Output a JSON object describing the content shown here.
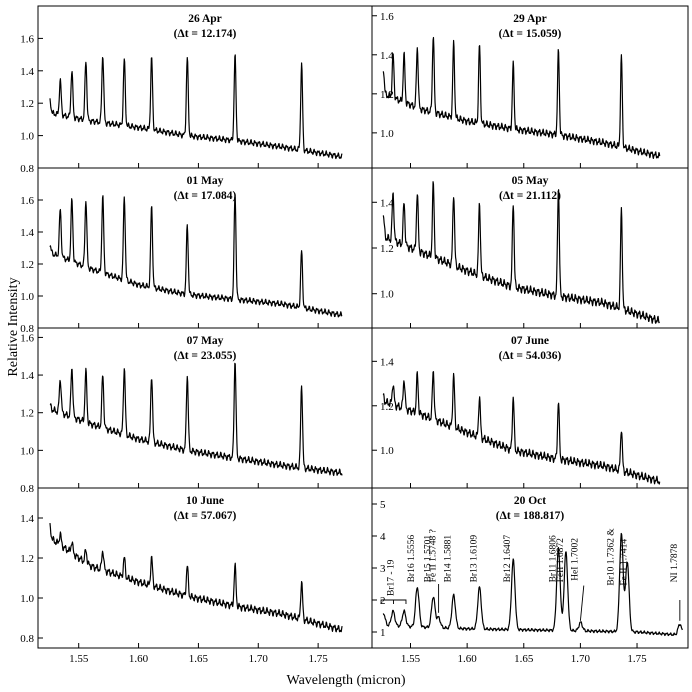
{
  "figure": {
    "ylabel": "Relative Intensity",
    "xlabel": "Wavelength (micron)",
    "xlim": [
      1.516,
      1.795
    ],
    "xticks": [
      "1.55",
      "1.60",
      "1.65",
      "1.70",
      "1.75"
    ],
    "xtick_values": [
      1.55,
      1.6,
      1.65,
      1.7,
      1.75
    ]
  },
  "chart_data": [
    {
      "type": "line",
      "title": "26 Apr",
      "subtitle": "(Δt = 12.174)",
      "ylim": [
        0.8,
        1.8
      ],
      "yticks": [
        0.8,
        1.0,
        1.2,
        1.4,
        1.6
      ],
      "ytick_labels": [
        "0.8",
        "1.0",
        "1.2",
        "1.4",
        "1.6"
      ],
      "x_range": [
        1.526,
        1.77
      ],
      "continuum": [
        [
          1.526,
          1.14
        ],
        [
          1.56,
          1.09
        ],
        [
          1.6,
          1.05
        ],
        [
          1.64,
          1.0
        ],
        [
          1.68,
          0.97
        ],
        [
          1.72,
          0.93
        ],
        [
          1.77,
          0.87
        ]
      ],
      "peaks": [
        [
          1.526,
          1.22
        ],
        [
          1.5346,
          1.34
        ],
        [
          1.5443,
          1.4
        ],
        [
          1.556,
          1.46
        ],
        [
          1.5701,
          1.5
        ],
        [
          1.5881,
          1.47
        ],
        [
          1.6109,
          1.48
        ],
        [
          1.6407,
          1.48
        ],
        [
          1.6806,
          1.49
        ],
        [
          1.7362,
          1.44
        ]
      ]
    },
    {
      "type": "line",
      "title": "29 Apr",
      "subtitle": "(Δt = 15.059)",
      "ylim": [
        0.82,
        1.65
      ],
      "yticks": [
        1.0,
        1.2,
        1.4,
        1.6
      ],
      "ytick_labels": [
        "1.0",
        "1.2",
        "1.4",
        "1.6"
      ],
      "x_range": [
        1.526,
        1.77
      ],
      "continuum": [
        [
          1.526,
          1.2
        ],
        [
          1.56,
          1.12
        ],
        [
          1.6,
          1.06
        ],
        [
          1.64,
          1.02
        ],
        [
          1.68,
          0.99
        ],
        [
          1.72,
          0.95
        ],
        [
          1.77,
          0.88
        ]
      ],
      "peaks": [
        [
          1.526,
          1.33
        ],
        [
          1.5346,
          1.4
        ],
        [
          1.5443,
          1.4
        ],
        [
          1.556,
          1.44
        ],
        [
          1.5701,
          1.5
        ],
        [
          1.5881,
          1.46
        ],
        [
          1.6109,
          1.45
        ],
        [
          1.6407,
          1.35
        ],
        [
          1.6806,
          1.42
        ],
        [
          1.7362,
          1.39
        ]
      ]
    },
    {
      "type": "line",
      "title": "01 May",
      "subtitle": "(Δt = 17.084)",
      "ylim": [
        0.8,
        1.8
      ],
      "yticks": [
        0.8,
        1.0,
        1.2,
        1.4,
        1.6
      ],
      "ytick_labels": [
        "0.8",
        "1.0",
        "1.2",
        "1.4",
        "1.6"
      ],
      "x_range": [
        1.526,
        1.77
      ],
      "continuum": [
        [
          1.526,
          1.27
        ],
        [
          1.56,
          1.17
        ],
        [
          1.6,
          1.07
        ],
        [
          1.64,
          1.01
        ],
        [
          1.68,
          0.98
        ],
        [
          1.72,
          0.95
        ],
        [
          1.77,
          0.88
        ]
      ],
      "peaks": [
        [
          1.526,
          1.32
        ],
        [
          1.5346,
          1.54
        ],
        [
          1.5443,
          1.6
        ],
        [
          1.556,
          1.6
        ],
        [
          1.5701,
          1.62
        ],
        [
          1.5881,
          1.62
        ],
        [
          1.6109,
          1.56
        ],
        [
          1.6407,
          1.44
        ],
        [
          1.6806,
          1.64
        ],
        [
          1.7362,
          1.28
        ]
      ]
    },
    {
      "type": "line",
      "title": "05 May",
      "subtitle": "(Δt = 21.112)",
      "ylim": [
        0.85,
        1.55
      ],
      "yticks": [
        1.0,
        1.2,
        1.4
      ],
      "ytick_labels": [
        "1.0",
        "1.2",
        "1.4"
      ],
      "x_range": [
        1.526,
        1.77
      ],
      "continuum": [
        [
          1.526,
          1.25
        ],
        [
          1.56,
          1.18
        ],
        [
          1.6,
          1.1
        ],
        [
          1.64,
          1.03
        ],
        [
          1.68,
          0.99
        ],
        [
          1.72,
          0.96
        ],
        [
          1.77,
          0.88
        ]
      ],
      "peaks": [
        [
          1.526,
          1.34
        ],
        [
          1.5346,
          1.44
        ],
        [
          1.5443,
          1.4
        ],
        [
          1.556,
          1.44
        ],
        [
          1.5701,
          1.48
        ],
        [
          1.5881,
          1.44
        ],
        [
          1.6109,
          1.4
        ],
        [
          1.6407,
          1.4
        ],
        [
          1.6806,
          1.47
        ],
        [
          1.7362,
          1.37
        ]
      ]
    },
    {
      "type": "line",
      "title": "07 May",
      "subtitle": "(Δt = 23.055)",
      "ylim": [
        0.8,
        1.65
      ],
      "yticks": [
        0.8,
        1.0,
        1.2,
        1.4,
        1.6
      ],
      "ytick_labels": [
        "0.8",
        "1.0",
        "1.2",
        "1.4",
        "1.6"
      ],
      "x_range": [
        1.526,
        1.77
      ],
      "continuum": [
        [
          1.526,
          1.22
        ],
        [
          1.56,
          1.14
        ],
        [
          1.6,
          1.06
        ],
        [
          1.64,
          1.0
        ],
        [
          1.68,
          0.96
        ],
        [
          1.72,
          0.92
        ],
        [
          1.77,
          0.88
        ]
      ],
      "peaks": [
        [
          1.526,
          1.24
        ],
        [
          1.5346,
          1.38
        ],
        [
          1.5443,
          1.44
        ],
        [
          1.556,
          1.42
        ],
        [
          1.5701,
          1.4
        ],
        [
          1.5881,
          1.44
        ],
        [
          1.6109,
          1.4
        ],
        [
          1.6407,
          1.4
        ],
        [
          1.6806,
          1.48
        ],
        [
          1.7362,
          1.35
        ]
      ]
    },
    {
      "type": "line",
      "title": "07 June",
      "subtitle": "(Δt = 54.036)",
      "ylim": [
        0.83,
        1.55
      ],
      "yticks": [
        1.0,
        1.2,
        1.4
      ],
      "ytick_labels": [
        "1.0",
        "1.2",
        "1.4"
      ],
      "x_range": [
        1.526,
        1.77
      ],
      "continuum": [
        [
          1.526,
          1.22
        ],
        [
          1.56,
          1.16
        ],
        [
          1.6,
          1.08
        ],
        [
          1.64,
          1.0
        ],
        [
          1.68,
          0.96
        ],
        [
          1.72,
          0.93
        ],
        [
          1.77,
          0.86
        ]
      ],
      "peaks": [
        [
          1.526,
          1.24
        ],
        [
          1.5346,
          1.3
        ],
        [
          1.5443,
          1.32
        ],
        [
          1.556,
          1.34
        ],
        [
          1.5701,
          1.36
        ],
        [
          1.5881,
          1.34
        ],
        [
          1.6109,
          1.24
        ],
        [
          1.6407,
          1.24
        ],
        [
          1.6806,
          1.22
        ],
        [
          1.7362,
          1.1
        ]
      ]
    },
    {
      "type": "line",
      "title": "10 June",
      "subtitle": "(Δt = 57.067)",
      "ylim": [
        0.75,
        1.55
      ],
      "yticks": [
        0.8,
        1.0,
        1.2,
        1.4
      ],
      "ytick_labels": [
        "0.8",
        "1.0",
        "1.2",
        "1.4"
      ],
      "x_range": [
        1.526,
        1.77
      ],
      "continuum": [
        [
          1.526,
          1.3
        ],
        [
          1.56,
          1.16
        ],
        [
          1.6,
          1.08
        ],
        [
          1.64,
          1.01
        ],
        [
          1.68,
          0.96
        ],
        [
          1.72,
          0.92
        ],
        [
          1.77,
          0.84
        ]
      ],
      "peaks": [
        [
          1.526,
          1.36
        ],
        [
          1.5346,
          1.32
        ],
        [
          1.5443,
          1.28
        ],
        [
          1.556,
          1.24
        ],
        [
          1.5701,
          1.24
        ],
        [
          1.5881,
          1.2
        ],
        [
          1.6109,
          1.2
        ],
        [
          1.6407,
          1.16
        ],
        [
          1.6806,
          1.16
        ],
        [
          1.7362,
          1.08
        ]
      ]
    },
    {
      "type": "line",
      "title": "20 Oct",
      "subtitle": "(Δt = 188.817)",
      "ylim": [
        0.5,
        5.5
      ],
      "yticks": [
        1,
        2,
        3,
        4,
        5
      ],
      "ytick_labels": [
        "1",
        "2",
        "3",
        "4",
        "5"
      ],
      "x_range": [
        1.526,
        1.79
      ],
      "continuum": [
        [
          1.526,
          1.2
        ],
        [
          1.6,
          1.1
        ],
        [
          1.68,
          1.05
        ],
        [
          1.75,
          1.0
        ],
        [
          1.79,
          0.9
        ]
      ],
      "peaks": [
        [
          1.526,
          1.6
        ],
        [
          1.5346,
          1.65
        ],
        [
          1.5443,
          1.65
        ],
        [
          1.556,
          2.4
        ],
        [
          1.5701,
          2.1
        ],
        [
          1.5748,
          1.45
        ],
        [
          1.5881,
          2.15
        ],
        [
          1.6109,
          2.4
        ],
        [
          1.6407,
          3.25
        ],
        [
          1.6806,
          3.6
        ],
        [
          1.6872,
          3.5
        ],
        [
          1.7002,
          1.3
        ],
        [
          1.7362,
          4.05
        ],
        [
          1.7414,
          3.2
        ],
        [
          1.7878,
          1.25
        ]
      ],
      "annotations": [
        "Br17 - 19",
        "Br16 1.5556",
        "Br15 1.5701",
        "Fe II 1.5748 ?",
        "Br14 1.5881",
        "Br13 1.6109",
        "Br12 1.6407",
        "Br11 1.6806",
        "FeII 1.6872",
        "HeI 1.7002",
        "Br10 1.7362 &",
        "Fe II 1.7414",
        "NI 1.7878"
      ]
    }
  ]
}
